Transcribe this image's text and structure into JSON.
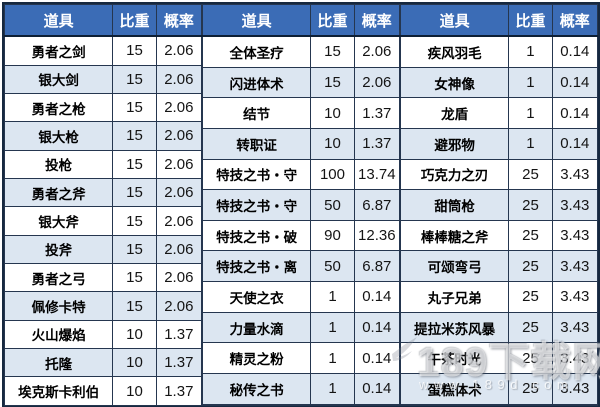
{
  "table": {
    "header": {
      "item": "道具",
      "weight": "比重",
      "probability": "概率"
    }
  },
  "watermark": {
    "site_name": "189下载网",
    "site_url": "www.189d.com"
  },
  "colors": {
    "header_bg": "#3b6cb6",
    "header_text": "#ffffff",
    "stripe_row_bg": "#dce6f1",
    "border": "#25364f"
  },
  "chart_data": {
    "type": "table",
    "columns": [
      "道具",
      "比重",
      "概率"
    ],
    "groups": [
      {
        "rows": [
          {
            "item": "勇者之剑",
            "weight": "15",
            "prob": "2.06"
          },
          {
            "item": "银大剑",
            "weight": "15",
            "prob": "2.06"
          },
          {
            "item": "勇者之枪",
            "weight": "15",
            "prob": "2.06"
          },
          {
            "item": "银大枪",
            "weight": "15",
            "prob": "2.06"
          },
          {
            "item": "投枪",
            "weight": "15",
            "prob": "2.06"
          },
          {
            "item": "勇者之斧",
            "weight": "15",
            "prob": "2.06"
          },
          {
            "item": "银大斧",
            "weight": "15",
            "prob": "2.06"
          },
          {
            "item": "投斧",
            "weight": "15",
            "prob": "2.06"
          },
          {
            "item": "勇者之弓",
            "weight": "15",
            "prob": "2.06"
          },
          {
            "item": "佩修卡特",
            "weight": "15",
            "prob": "2.06"
          },
          {
            "item": "火山爆焰",
            "weight": "10",
            "prob": "1.37"
          },
          {
            "item": "托隆",
            "weight": "10",
            "prob": "1.37"
          },
          {
            "item": "埃克斯卡利伯",
            "weight": "10",
            "prob": "1.37"
          }
        ]
      },
      {
        "rows": [
          {
            "item": "全体圣疗",
            "weight": "15",
            "prob": "2.06"
          },
          {
            "item": "闪进体术",
            "weight": "15",
            "prob": "2.06"
          },
          {
            "item": "结节",
            "weight": "10",
            "prob": "1.37"
          },
          {
            "item": "转职证",
            "weight": "10",
            "prob": "1.37"
          },
          {
            "item": "特技之书・守",
            "weight": "100",
            "prob": "13.74"
          },
          {
            "item": "特技之书・守",
            "weight": "50",
            "prob": "6.87"
          },
          {
            "item": "特技之书・破",
            "weight": "90",
            "prob": "12.36"
          },
          {
            "item": "特技之书・离",
            "weight": "50",
            "prob": "6.87"
          },
          {
            "item": "天使之衣",
            "weight": "1",
            "prob": "0.14"
          },
          {
            "item": "力量水滴",
            "weight": "1",
            "prob": "0.14"
          },
          {
            "item": "精灵之粉",
            "weight": "1",
            "prob": "0.14"
          },
          {
            "item": "秘传之书",
            "weight": "1",
            "prob": "0.14"
          },
          {
            "item": "",
            "weight": "",
            "prob": ""
          }
        ]
      },
      {
        "rows": [
          {
            "item": "疾风羽毛",
            "weight": "1",
            "prob": "0.14"
          },
          {
            "item": "女神像",
            "weight": "1",
            "prob": "0.14"
          },
          {
            "item": "龙盾",
            "weight": "1",
            "prob": "0.14"
          },
          {
            "item": "避邪物",
            "weight": "1",
            "prob": "0.14"
          },
          {
            "item": "巧克力之刃",
            "weight": "25",
            "prob": "3.43"
          },
          {
            "item": "甜筒枪",
            "weight": "25",
            "prob": "3.43"
          },
          {
            "item": "棒棒糖之斧",
            "weight": "25",
            "prob": "3.43"
          },
          {
            "item": "可颂弯弓",
            "weight": "25",
            "prob": "3.43"
          },
          {
            "item": "丸子兄弟",
            "weight": "25",
            "prob": "3.43"
          },
          {
            "item": "提拉米苏风暴",
            "weight": "25",
            "prob": "3.43"
          },
          {
            "item": "午茶时光",
            "weight": "25",
            "prob": "3.43"
          },
          {
            "item": "蛋糕体术",
            "weight": "25",
            "prob": "3.43"
          },
          {
            "item": "",
            "weight": "",
            "prob": ""
          }
        ]
      }
    ]
  }
}
